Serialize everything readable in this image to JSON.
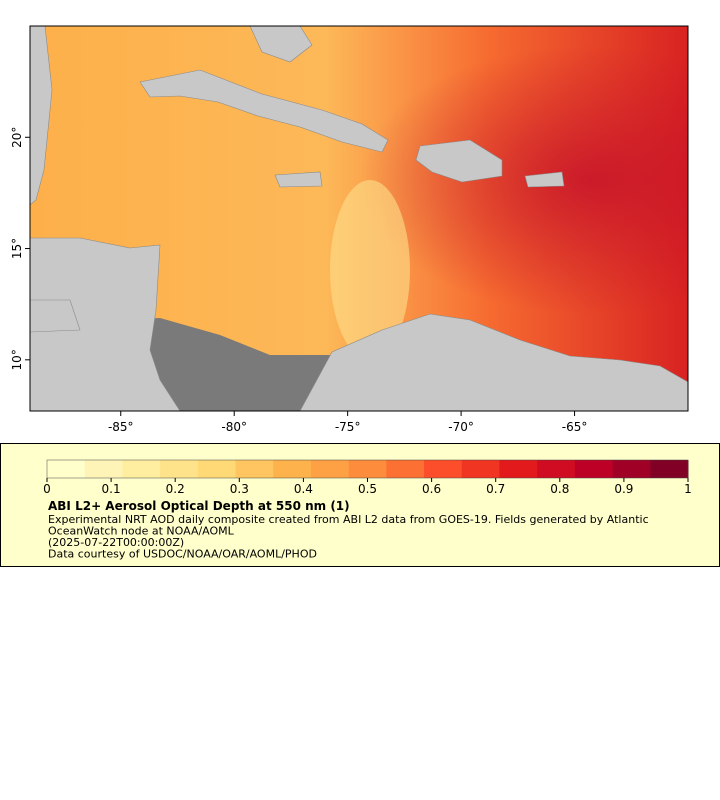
{
  "chart_data": {
    "type": "map",
    "xlim": [
      -89,
      -60
    ],
    "ylim": [
      7.7,
      25
    ],
    "xticks": [
      {
        "value": -85,
        "label": "-85°"
      },
      {
        "value": -80,
        "label": "-80°"
      },
      {
        "value": -75,
        "label": "-75°"
      },
      {
        "value": -70,
        "label": "-70°"
      },
      {
        "value": -65,
        "label": "-65°"
      }
    ],
    "yticks": [
      {
        "value": 10,
        "label": "10°"
      },
      {
        "value": 15,
        "label": "15°"
      },
      {
        "value": 20,
        "label": "20°"
      }
    ],
    "colorbar": {
      "title": "ABI L2+ Aerosol Optical Depth at 550 nm (1)",
      "lim": [
        0,
        1
      ],
      "ticks": [
        0,
        0.1,
        0.2,
        0.3,
        0.4,
        0.5,
        0.6,
        0.7,
        0.8,
        0.9,
        1
      ],
      "colormap": [
        "#ffffcc",
        "#fff4b8",
        "#ffeda0",
        "#fee38b",
        "#fed976",
        "#fec560",
        "#feb24c",
        "#fea145",
        "#fd8d3c",
        "#fc7033",
        "#fc4e2a",
        "#f03523",
        "#e31a1c",
        "#cf0c22",
        "#bd0026",
        "#a10026",
        "#800026"
      ]
    },
    "notes": [
      "Experimental NRT AOD daily composite created from ABI L2 data from GOES-19. Fields generated by Atlantic",
      "OceanWatch node at NOAA/AOML",
      "(2025-07-22T00:00:00Z)",
      "Data courtesy of USDOC/NOAA/OAR/AOML/PHOD"
    ]
  }
}
